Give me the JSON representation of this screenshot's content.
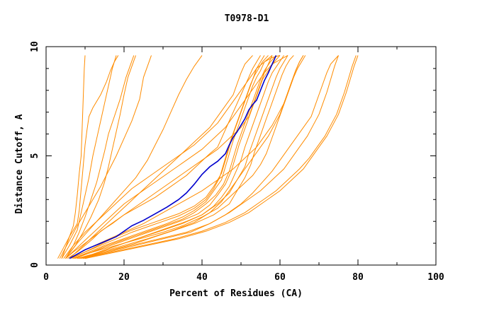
{
  "chart_data": {
    "type": "line",
    "title": "T0978-D1",
    "xlabel": "Percent of Residues (CA)",
    "ylabel": "Distance Cutoff, A",
    "xlim": [
      0,
      100
    ],
    "ylim": [
      0,
      10
    ],
    "x_ticks": [
      "0",
      "20",
      "40",
      "60",
      "80",
      "100"
    ],
    "y_ticks": [
      "0",
      "5",
      "10"
    ],
    "grid": false,
    "colors": {
      "models": "#ff8c00",
      "highlight": "#0000cd"
    },
    "series": [
      {
        "x": [
          6.0,
          8,
          10,
          12,
          14,
          16,
          18,
          20,
          22,
          25,
          28,
          31,
          34,
          36,
          38,
          40,
          42,
          44,
          46,
          47,
          48,
          49,
          50,
          51,
          52,
          53,
          54,
          55,
          56,
          57,
          58,
          59
        ],
        "y": [
          0.3,
          0.5,
          0.7,
          0.85,
          1.0,
          1.15,
          1.3,
          1.55,
          1.8,
          2.05,
          2.35,
          2.65,
          3.0,
          3.3,
          3.7,
          4.15,
          4.5,
          4.75,
          5.1,
          5.5,
          5.85,
          6.1,
          6.4,
          6.7,
          7.1,
          7.35,
          7.55,
          8.0,
          8.45,
          8.8,
          9.2,
          9.6
        ],
        "highlight": true
      },
      {
        "x": [
          3.0,
          4.5,
          6,
          7,
          8,
          8.5,
          9,
          9.5,
          10,
          10.5,
          11,
          12,
          14,
          15.5,
          16.5,
          17.5,
          18.5
        ],
        "y": [
          0.3,
          0.8,
          1.3,
          1.6,
          1.9,
          2.5,
          3.5,
          4.5,
          5.5,
          6.2,
          6.8,
          7.2,
          7.8,
          8.4,
          8.9,
          9.3,
          9.6
        ]
      },
      {
        "x": [
          4.0,
          5,
          6,
          7,
          7.5,
          8,
          8.5,
          9,
          9.2,
          9.4,
          9.6,
          9.8,
          10
        ],
        "y": [
          0.3,
          0.8,
          1.3,
          1.8,
          2.4,
          3.2,
          4.2,
          5.0,
          6.0,
          7.0,
          8.0,
          9.0,
          9.6
        ]
      },
      {
        "x": [
          4.0,
          6,
          8,
          9,
          10,
          11,
          12,
          13,
          14,
          15,
          16,
          17,
          18
        ],
        "y": [
          0.3,
          0.9,
          1.6,
          2.4,
          3.2,
          4.0,
          5.0,
          5.8,
          6.6,
          7.4,
          8.2,
          9.0,
          9.6
        ]
      },
      {
        "x": [
          5.0,
          7,
          8.5,
          10,
          11.5,
          13,
          14,
          15,
          16,
          17.5,
          19,
          20.5,
          22.5
        ],
        "y": [
          0.3,
          0.9,
          1.5,
          2.2,
          3.0,
          3.8,
          4.5,
          5.2,
          6.0,
          6.8,
          7.6,
          8.6,
          9.6
        ]
      },
      {
        "x": [
          5.0,
          7.5,
          9.5,
          11.5,
          13.5,
          15,
          16,
          17,
          18,
          19,
          20,
          21,
          23
        ],
        "y": [
          0.3,
          0.9,
          1.5,
          2.2,
          3.0,
          3.8,
          4.5,
          5.3,
          6.1,
          6.9,
          7.8,
          8.6,
          9.6
        ]
      },
      {
        "x": [
          3.5,
          5,
          6.5,
          8,
          10,
          12,
          14,
          16,
          18,
          20,
          22,
          24,
          25,
          27
        ],
        "y": [
          0.3,
          0.8,
          1.3,
          1.8,
          2.4,
          3.0,
          3.6,
          4.3,
          5.0,
          5.8,
          6.6,
          7.6,
          8.6,
          9.6
        ]
      },
      {
        "x": [
          5.0,
          8,
          11,
          14,
          17,
          20,
          23,
          26,
          28,
          30,
          32,
          34,
          36,
          38,
          40
        ],
        "y": [
          0.3,
          1.0,
          1.6,
          2.2,
          2.8,
          3.4,
          4.0,
          4.8,
          5.5,
          6.2,
          7.0,
          7.8,
          8.5,
          9.1,
          9.6
        ]
      },
      {
        "x": [
          5.5,
          8,
          10,
          12,
          14,
          17,
          20,
          24,
          28,
          32,
          36,
          39,
          42,
          44,
          45,
          46,
          47,
          48,
          49,
          50,
          51,
          52,
          53,
          54,
          55
        ],
        "y": [
          0.3,
          0.6,
          0.9,
          1.2,
          1.55,
          1.9,
          2.3,
          2.7,
          3.1,
          3.6,
          4.1,
          4.6,
          5.1,
          5.4,
          5.8,
          6.2,
          6.6,
          7.0,
          7.4,
          7.8,
          8.2,
          8.6,
          9.0,
          9.3,
          9.6
        ]
      },
      {
        "x": [
          5.0,
          7,
          10,
          13,
          16,
          20,
          24,
          28,
          32,
          36,
          40,
          44,
          47,
          50,
          52,
          53,
          54,
          55,
          56,
          57,
          58
        ],
        "y": [
          0.3,
          0.6,
          1.0,
          1.4,
          1.8,
          2.3,
          2.8,
          3.3,
          3.8,
          4.3,
          4.8,
          5.3,
          5.8,
          6.3,
          6.8,
          7.3,
          7.8,
          8.3,
          8.8,
          9.2,
          9.6
        ]
      },
      {
        "x": [
          6.0,
          10,
          14,
          18,
          22,
          26,
          30,
          34,
          38,
          41,
          43,
          45,
          46,
          47,
          48,
          49,
          50,
          51,
          52,
          53,
          54,
          55,
          56
        ],
        "y": [
          0.3,
          0.6,
          0.95,
          1.3,
          1.6,
          1.85,
          2.1,
          2.35,
          2.7,
          3.1,
          3.6,
          4.2,
          4.8,
          5.4,
          6.0,
          6.5,
          7.0,
          7.5,
          8.0,
          8.5,
          9.0,
          9.3,
          9.6
        ]
      },
      {
        "x": [
          6.5,
          10,
          14,
          18,
          22,
          26,
          30,
          34,
          38,
          41,
          43,
          44.5,
          45.5,
          46.5,
          47.5,
          48.5,
          49.5,
          50.5,
          51.5,
          52.5,
          53.5,
          54.5,
          55.5,
          57
        ],
        "y": [
          0.3,
          0.6,
          0.9,
          1.2,
          1.5,
          1.75,
          2.0,
          2.25,
          2.6,
          3.0,
          3.5,
          4.0,
          4.6,
          5.2,
          5.8,
          6.3,
          6.8,
          7.3,
          7.8,
          8.3,
          8.7,
          9.0,
          9.3,
          9.6
        ]
      },
      {
        "x": [
          7.0,
          11,
          15,
          19,
          23,
          27,
          31,
          35,
          38,
          41,
          43,
          45,
          46,
          47,
          48,
          49,
          50,
          51,
          52,
          53,
          54,
          55,
          56,
          58
        ],
        "y": [
          0.3,
          0.6,
          0.9,
          1.15,
          1.4,
          1.65,
          1.9,
          2.2,
          2.5,
          2.9,
          3.4,
          3.9,
          4.5,
          5.1,
          5.7,
          6.2,
          6.7,
          7.2,
          7.7,
          8.2,
          8.6,
          8.9,
          9.3,
          9.6
        ]
      },
      {
        "x": [
          7.0,
          11,
          15,
          19,
          23,
          27,
          31,
          35,
          38,
          41,
          43.5,
          45.5,
          47,
          48,
          49,
          50,
          51,
          52,
          53,
          54,
          55,
          56,
          57.5,
          59
        ],
        "y": [
          0.3,
          0.55,
          0.85,
          1.1,
          1.35,
          1.6,
          1.85,
          2.1,
          2.4,
          2.8,
          3.2,
          3.7,
          4.3,
          4.9,
          5.5,
          6.0,
          6.5,
          7.0,
          7.5,
          8.0,
          8.5,
          8.9,
          9.3,
          9.6
        ]
      },
      {
        "x": [
          7.5,
          11,
          15,
          19,
          23,
          27,
          31,
          35,
          39,
          42,
          44,
          46,
          47.5,
          48.5,
          49.5,
          50.5,
          51.5,
          52.5,
          53.5,
          54.5,
          55.5,
          57,
          58.5,
          60
        ],
        "y": [
          0.3,
          0.55,
          0.8,
          1.05,
          1.3,
          1.55,
          1.8,
          2.05,
          2.35,
          2.75,
          3.2,
          3.7,
          4.3,
          4.9,
          5.5,
          6.0,
          6.5,
          7.0,
          7.5,
          8.0,
          8.5,
          8.9,
          9.3,
          9.6
        ]
      },
      {
        "x": [
          8.0,
          12,
          16,
          20,
          24,
          28,
          32,
          36,
          40,
          43,
          45,
          47,
          48.5,
          50,
          51,
          52,
          53,
          54,
          55,
          56,
          57,
          58,
          59.5,
          61
        ],
        "y": [
          0.3,
          0.5,
          0.75,
          1.0,
          1.25,
          1.5,
          1.75,
          2.0,
          2.3,
          2.7,
          3.1,
          3.6,
          4.2,
          4.8,
          5.4,
          5.9,
          6.4,
          6.9,
          7.4,
          7.9,
          8.4,
          8.8,
          9.2,
          9.6
        ]
      },
      {
        "x": [
          8.0,
          12,
          16,
          20,
          25,
          30,
          35,
          40,
          44,
          47,
          49,
          51,
          52,
          53,
          54,
          55,
          56,
          57,
          58,
          59,
          60,
          61,
          62
        ],
        "y": [
          0.3,
          0.5,
          0.75,
          1.0,
          1.3,
          1.6,
          1.9,
          2.3,
          2.8,
          3.3,
          3.9,
          4.5,
          5.1,
          5.6,
          6.1,
          6.6,
          7.1,
          7.6,
          8.1,
          8.6,
          9.0,
          9.3,
          9.6
        ]
      },
      {
        "x": [
          8.5,
          13,
          18,
          23,
          28,
          33,
          38,
          43,
          47,
          49,
          51,
          52.5,
          53.5,
          54.5,
          55.5,
          56.5,
          57.5,
          58.5,
          59.5,
          60.5,
          61.5,
          62.5,
          63.5
        ],
        "y": [
          0.3,
          0.5,
          0.75,
          1.0,
          1.3,
          1.6,
          1.9,
          2.3,
          2.8,
          3.4,
          4.0,
          4.6,
          5.2,
          5.7,
          6.2,
          6.7,
          7.2,
          7.7,
          8.2,
          8.7,
          9.1,
          9.4,
          9.6
        ]
      },
      {
        "x": [
          8.5,
          14,
          20,
          26,
          32,
          38,
          42,
          45,
          47,
          49,
          51,
          53,
          55,
          57,
          58.5,
          60,
          61,
          62,
          63,
          64,
          65,
          66
        ],
        "y": [
          0.3,
          0.6,
          0.9,
          1.2,
          1.55,
          1.95,
          2.4,
          2.9,
          3.4,
          3.9,
          4.4,
          4.9,
          5.4,
          5.9,
          6.4,
          6.9,
          7.4,
          7.9,
          8.4,
          8.9,
          9.3,
          9.6
        ]
      },
      {
        "x": [
          7.0,
          12,
          18,
          24,
          30,
          35,
          40,
          44,
          47,
          50,
          53,
          55,
          56.5,
          57.5,
          58.5,
          59.5,
          60.5,
          61.5,
          62.5,
          63.5,
          64.5,
          65.5,
          66.5
        ],
        "y": [
          0.3,
          0.6,
          0.9,
          1.2,
          1.5,
          1.8,
          2.2,
          2.6,
          3.1,
          3.6,
          4.1,
          4.6,
          5.1,
          5.6,
          6.1,
          6.6,
          7.1,
          7.6,
          8.1,
          8.6,
          9.0,
          9.3,
          9.6
        ]
      },
      {
        "x": [
          9.0,
          16,
          23,
          30,
          37,
          42,
          46,
          50,
          53,
          55.5,
          58,
          60,
          62,
          64,
          66,
          68,
          69,
          70,
          71,
          72,
          73,
          74,
          75
        ],
        "y": [
          0.3,
          0.6,
          0.9,
          1.2,
          1.5,
          1.9,
          2.3,
          2.8,
          3.3,
          3.8,
          4.3,
          4.8,
          5.3,
          5.8,
          6.3,
          6.8,
          7.3,
          7.8,
          8.3,
          8.8,
          9.2,
          9.4,
          9.6
        ]
      },
      {
        "x": [
          8.0,
          15,
          22,
          29,
          36,
          42,
          47,
          51,
          55,
          58,
          61,
          63,
          65,
          67,
          68.5,
          70,
          71,
          72,
          73,
          74,
          75
        ],
        "y": [
          0.3,
          0.6,
          0.9,
          1.2,
          1.5,
          1.9,
          2.4,
          2.9,
          3.4,
          3.9,
          4.4,
          4.9,
          5.4,
          5.9,
          6.4,
          6.9,
          7.4,
          7.9,
          8.5,
          9.1,
          9.6
        ]
      },
      {
        "x": [
          10.0,
          18,
          26,
          34,
          41,
          47,
          52,
          56,
          60,
          63,
          66,
          68,
          70,
          72,
          73.5,
          75,
          76,
          77,
          78,
          79,
          80
        ],
        "y": [
          0.3,
          0.6,
          0.9,
          1.2,
          1.55,
          1.95,
          2.4,
          2.9,
          3.4,
          3.9,
          4.4,
          4.9,
          5.4,
          5.9,
          6.4,
          6.9,
          7.4,
          7.9,
          8.5,
          9.1,
          9.6
        ]
      },
      {
        "x": [
          9.5,
          17,
          25,
          33,
          40,
          46,
          51,
          55,
          59,
          62,
          65,
          67.5,
          69.5,
          71.5,
          73,
          74.5,
          75.5,
          76.5,
          77.5,
          78.5,
          79.5
        ],
        "y": [
          0.3,
          0.6,
          0.9,
          1.2,
          1.55,
          1.95,
          2.4,
          2.9,
          3.4,
          3.9,
          4.4,
          4.9,
          5.4,
          5.9,
          6.4,
          6.9,
          7.4,
          7.9,
          8.5,
          9.1,
          9.6
        ]
      },
      {
        "x": [
          6.0,
          10,
          15,
          20,
          25,
          30,
          35,
          40,
          44,
          48,
          51,
          54,
          56,
          58,
          59.5,
          61,
          62,
          63,
          64,
          65,
          66
        ],
        "y": [
          0.3,
          0.7,
          1.1,
          1.5,
          1.9,
          2.4,
          2.9,
          3.4,
          3.9,
          4.4,
          4.9,
          5.4,
          5.9,
          6.4,
          6.9,
          7.4,
          7.9,
          8.4,
          8.9,
          9.3,
          9.6
        ]
      },
      {
        "x": [
          5.0,
          8,
          11,
          14,
          17,
          20,
          24,
          28,
          32,
          36,
          40,
          43,
          46,
          48,
          50,
          52,
          54,
          56,
          58,
          60,
          62
        ],
        "y": [
          0.3,
          0.8,
          1.3,
          1.8,
          2.3,
          2.8,
          3.3,
          3.8,
          4.3,
          4.8,
          5.3,
          5.8,
          6.3,
          6.8,
          7.3,
          7.8,
          8.3,
          8.8,
          9.2,
          9.4,
          9.6
        ]
      },
      {
        "x": [
          4.5,
          7,
          10,
          13,
          16,
          19,
          22,
          26,
          30,
          34,
          38,
          41,
          44,
          46,
          48,
          50,
          52,
          54,
          56,
          58,
          60
        ],
        "y": [
          0.3,
          0.9,
          1.5,
          2.0,
          2.5,
          3.0,
          3.5,
          4.0,
          4.5,
          5.0,
          5.5,
          6.0,
          6.5,
          7.0,
          7.5,
          8.0,
          8.5,
          9.0,
          9.3,
          9.5,
          9.6
        ]
      },
      {
        "x": [
          6.0,
          9,
          12,
          15,
          18,
          21,
          24,
          27,
          30,
          33,
          36,
          39,
          42,
          44,
          46,
          48,
          49,
          50,
          51,
          52,
          53
        ],
        "y": [
          0.3,
          0.8,
          1.3,
          1.8,
          2.3,
          2.8,
          3.3,
          3.8,
          4.3,
          4.8,
          5.3,
          5.8,
          6.3,
          6.8,
          7.3,
          7.8,
          8.3,
          8.8,
          9.2,
          9.4,
          9.6
        ]
      }
    ]
  }
}
